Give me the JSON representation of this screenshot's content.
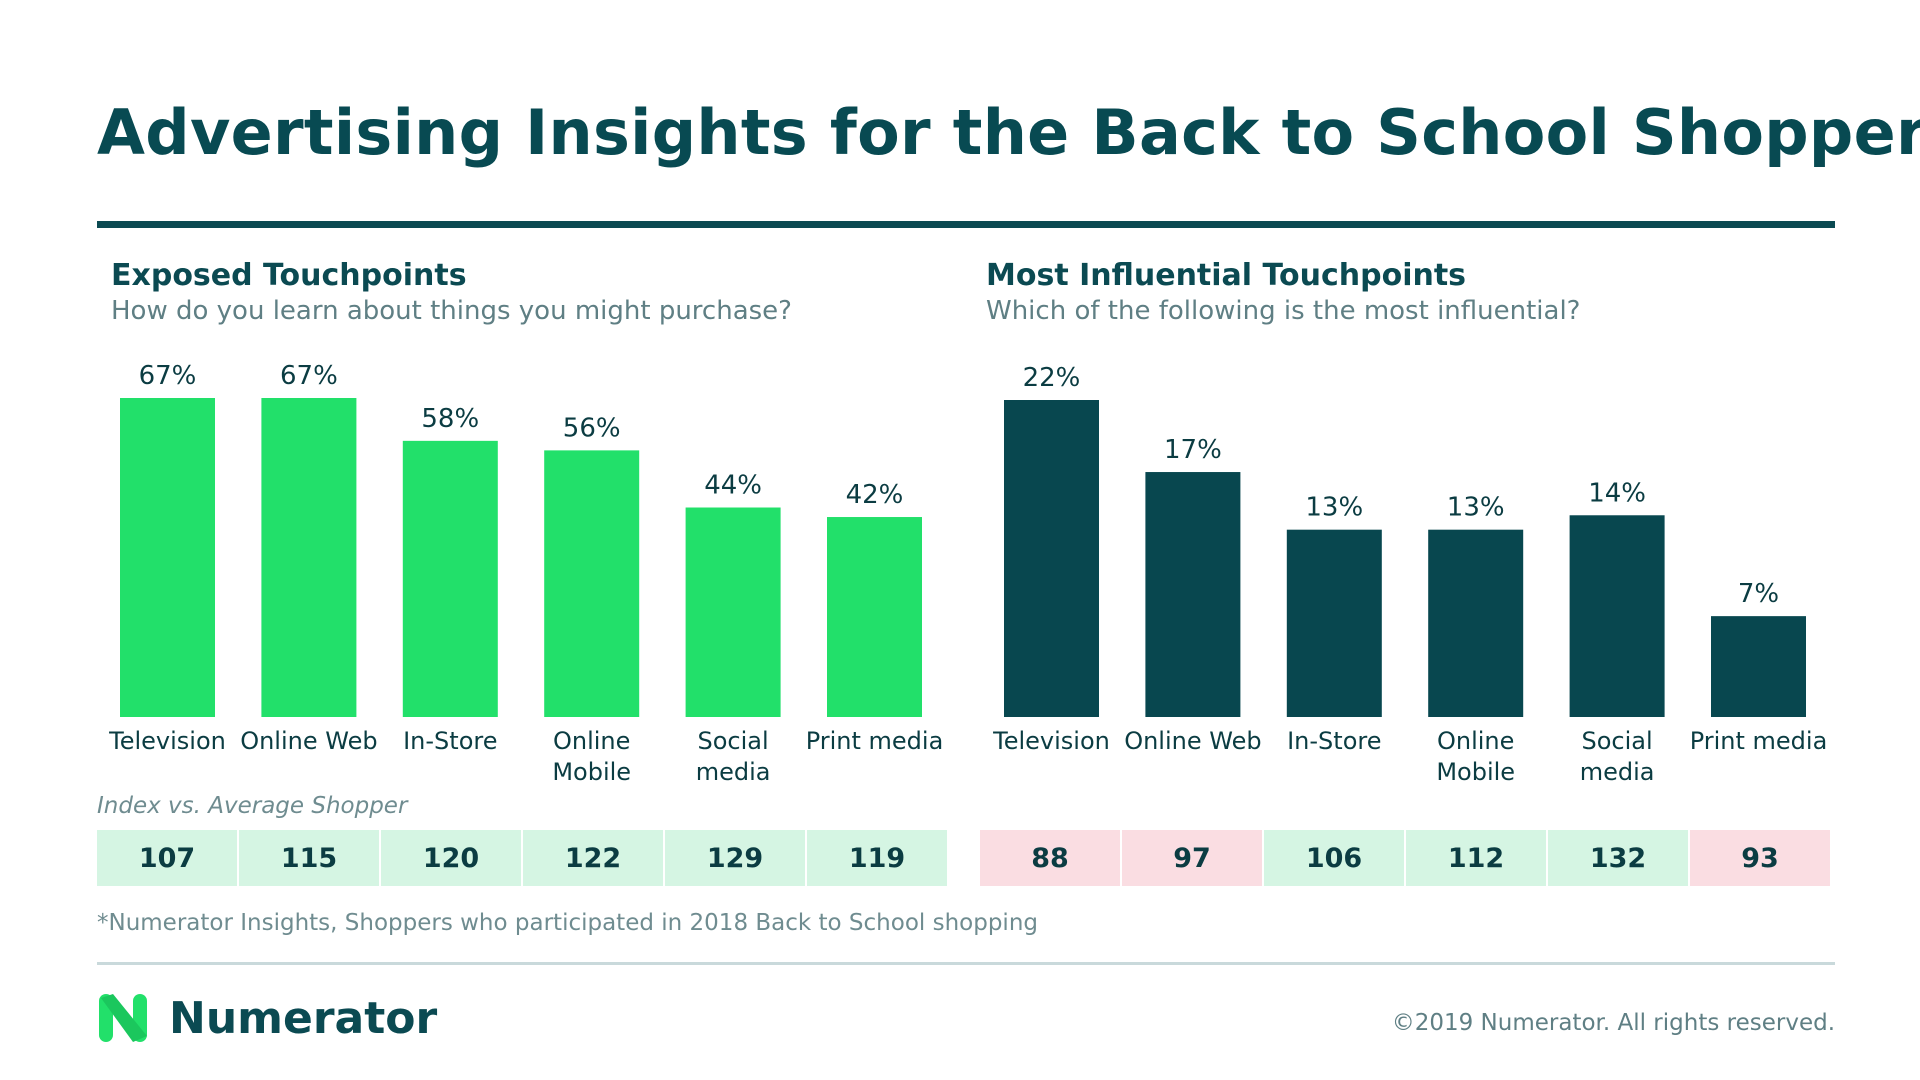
{
  "title": "Advertising Insights for the Back to School Shopper",
  "colors": {
    "left_bar": "#22e06a",
    "right_bar": "#08474f",
    "index_high": "#d5f5e3",
    "index_low": "#fadde2",
    "text_dark": "#0b4a52"
  },
  "chart_data": [
    {
      "type": "bar",
      "title": "Exposed Touchpoints",
      "subtitle": "How do you learn about things you might purchase?",
      "categories": [
        "Television",
        "Online Web",
        "In-Store",
        "Online Mobile",
        "Social media",
        "Print media"
      ],
      "category_lines": [
        [
          "Television"
        ],
        [
          "Online Web"
        ],
        [
          "In-Store"
        ],
        [
          "Online",
          "Mobile"
        ],
        [
          "Social",
          "media"
        ],
        [
          "Print media"
        ]
      ],
      "values": [
        67,
        67,
        58,
        56,
        44,
        42
      ],
      "value_labels": [
        "67%",
        "67%",
        "58%",
        "56%",
        "44%",
        "42%"
      ],
      "ylim": [
        0,
        67
      ],
      "grid": false,
      "index": [
        107,
        115,
        120,
        122,
        129,
        119
      ]
    },
    {
      "type": "bar",
      "title": "Most Influential Touchpoints",
      "subtitle": "Which of the following is the most influential?",
      "categories": [
        "Television",
        "Online Web",
        "In-Store",
        "Online Mobile",
        "Social media",
        "Print media"
      ],
      "category_lines": [
        [
          "Television"
        ],
        [
          "Online Web"
        ],
        [
          "In-Store"
        ],
        [
          "Online",
          "Mobile"
        ],
        [
          "Social",
          "media"
        ],
        [
          "Print media"
        ]
      ],
      "values": [
        22,
        17,
        13,
        13,
        14,
        7
      ],
      "value_labels": [
        "22%",
        "17%",
        "13%",
        "13%",
        "14%",
        "7%"
      ],
      "ylim": [
        0,
        22
      ],
      "grid": false,
      "index": [
        88,
        97,
        106,
        112,
        132,
        93
      ]
    }
  ],
  "index_label": "Index vs. Average Shopper",
  "footnote": "*Numerator Insights, Shoppers who participated in 2018 Back to School shopping",
  "brand": "Numerator",
  "copyright": "©2019 Numerator. All rights reserved."
}
